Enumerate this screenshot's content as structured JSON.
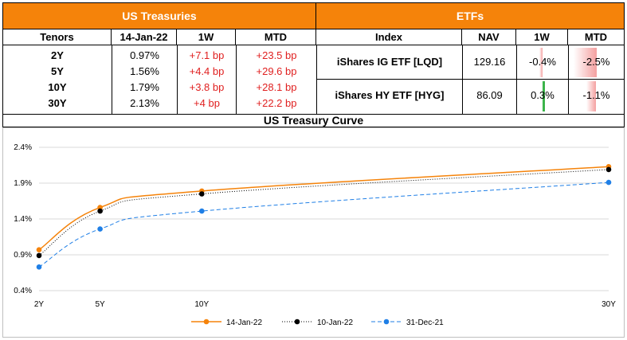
{
  "us_treasuries": {
    "title": "US Treasuries",
    "headers": [
      "Tenors",
      "14-Jan-22",
      "1W",
      "MTD"
    ],
    "rows": [
      {
        "tenor": "2Y",
        "yield": "0.97%",
        "w1": "+7.1 bp",
        "mtd": "+23.5 bp"
      },
      {
        "tenor": "5Y",
        "yield": "1.56%",
        "w1": "+4.4 bp",
        "mtd": "+29.6 bp"
      },
      {
        "tenor": "10Y",
        "yield": "1.79%",
        "w1": "+3.8 bp",
        "mtd": "+28.1 bp"
      },
      {
        "tenor": "30Y",
        "yield": "2.13%",
        "w1": "+4 bp",
        "mtd": "+22.2 bp"
      }
    ]
  },
  "etfs": {
    "title": "ETFs",
    "headers": [
      "Index",
      "NAV",
      "1W",
      "MTD"
    ],
    "rows": [
      {
        "index": "iShares IG ETF [LQD]",
        "nav": "129.16",
        "w1": "-0.4%",
        "mtd": "-2.5%",
        "w1_value": -0.4,
        "mtd_value": -2.5
      },
      {
        "index": "iShares HY ETF [HYG]",
        "nav": "86.09",
        "w1": "0.3%",
        "mtd": "-1.1%",
        "w1_value": 0.3,
        "mtd_value": -1.1
      }
    ],
    "colors": {
      "negative": "#f4a0a0",
      "positive": "#3cb44b"
    }
  },
  "chart_title": "US Treasury Curve",
  "chart_data": {
    "type": "line",
    "title": "US Treasury Curve",
    "x": [
      2,
      5,
      10,
      30
    ],
    "x_tick_labels": [
      "2Y",
      "5Y",
      "10Y",
      "30Y"
    ],
    "ylim": [
      0.4,
      2.4
    ],
    "y_ticks": [
      0.4,
      0.9,
      1.4,
      1.9,
      2.4
    ],
    "y_tick_labels": [
      "0.4%",
      "0.9%",
      "1.4%",
      "1.9%",
      "2.4%"
    ],
    "series": [
      {
        "name": "14-Jan-22",
        "values": [
          0.97,
          1.56,
          1.79,
          2.13
        ],
        "color": "#f5830a",
        "style": "solid"
      },
      {
        "name": "10-Jan-22",
        "values": [
          0.89,
          1.51,
          1.75,
          2.09
        ],
        "color": "#000000",
        "style": "dotted"
      },
      {
        "name": "31-Dec-21",
        "values": [
          0.73,
          1.26,
          1.51,
          1.91
        ],
        "color": "#1f7fe6",
        "style": "dashed"
      }
    ],
    "legend_position": "bottom"
  }
}
